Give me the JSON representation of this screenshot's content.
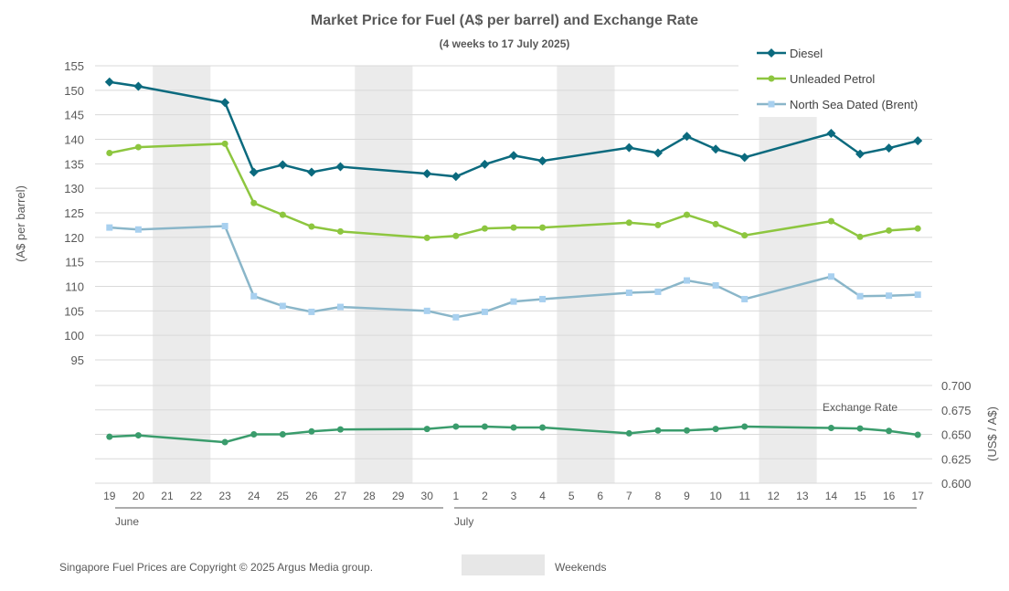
{
  "chart_data": {
    "type": "line",
    "title": "Market Price for Fuel (A$ per barrel) and Exchange Rate",
    "subtitle": "(4 weeks to 17 July 2025)",
    "ylabel": "(A$ per barrel)",
    "y2label": "(US$ / A$)",
    "ylim": [
      95,
      155
    ],
    "yticks": [
      95,
      100,
      105,
      110,
      115,
      120,
      125,
      130,
      135,
      140,
      145,
      150,
      155
    ],
    "y2lim": [
      0.6,
      0.7
    ],
    "y2ticks": [
      "0.600",
      "0.625",
      "0.650",
      "0.675",
      "0.700"
    ],
    "exchange_label": "Exchange Rate",
    "days": [
      "19",
      "20",
      "21",
      "22",
      "23",
      "24",
      "25",
      "26",
      "27",
      "28",
      "29",
      "30",
      "1",
      "2",
      "3",
      "4",
      "5",
      "6",
      "7",
      "8",
      "9",
      "10",
      "11",
      "12",
      "13",
      "14",
      "15",
      "16",
      "17"
    ],
    "months": [
      {
        "label": "June",
        "start_index": 0,
        "end_index": 11
      },
      {
        "label": "July",
        "start_index": 12,
        "end_index": 28
      }
    ],
    "weekend_pairs": [
      [
        2,
        3
      ],
      [
        9,
        10
      ],
      [
        16,
        17
      ],
      [
        23,
        24
      ]
    ],
    "series": [
      {
        "name": "Diesel",
        "color": "#0b6a7e",
        "marker": "diamond",
        "axis": "left",
        "points": [
          [
            0,
            151.7
          ],
          [
            1,
            150.8
          ],
          [
            4,
            147.5
          ],
          [
            5,
            133.3
          ],
          [
            6,
            134.8
          ],
          [
            7,
            133.3
          ],
          [
            8,
            134.4
          ],
          [
            11,
            133.0
          ],
          [
            12,
            132.4
          ],
          [
            13,
            134.9
          ],
          [
            14,
            136.7
          ],
          [
            15,
            135.6
          ],
          [
            18,
            138.3
          ],
          [
            19,
            137.2
          ],
          [
            20,
            140.6
          ],
          [
            21,
            138.0
          ],
          [
            22,
            136.3
          ],
          [
            25,
            141.2
          ],
          [
            26,
            137.0
          ],
          [
            27,
            138.2
          ],
          [
            28,
            139.7
          ]
        ]
      },
      {
        "name": "Unleaded Petrol",
        "color": "#8dc63f",
        "marker": "circle",
        "axis": "left",
        "points": [
          [
            0,
            137.2
          ],
          [
            1,
            138.4
          ],
          [
            4,
            139.1
          ],
          [
            5,
            127.0
          ],
          [
            6,
            124.6
          ],
          [
            7,
            122.2
          ],
          [
            8,
            121.2
          ],
          [
            11,
            119.9
          ],
          [
            12,
            120.3
          ],
          [
            13,
            121.8
          ],
          [
            14,
            122.0
          ],
          [
            15,
            122.0
          ],
          [
            18,
            123.0
          ],
          [
            19,
            122.5
          ],
          [
            20,
            124.6
          ],
          [
            21,
            122.7
          ],
          [
            22,
            120.4
          ],
          [
            25,
            123.3
          ],
          [
            26,
            120.1
          ],
          [
            27,
            121.4
          ],
          [
            28,
            121.8
          ]
        ]
      },
      {
        "name": "North Sea Dated (Brent)",
        "color": "#8ab6c9",
        "marker": "square",
        "axis": "left",
        "points": [
          [
            0,
            122.0
          ],
          [
            1,
            121.6
          ],
          [
            4,
            122.3
          ],
          [
            5,
            108.0
          ],
          [
            6,
            106.0
          ],
          [
            7,
            104.8
          ],
          [
            8,
            105.8
          ],
          [
            11,
            105.0
          ],
          [
            12,
            103.7
          ],
          [
            13,
            104.8
          ],
          [
            14,
            106.9
          ],
          [
            15,
            107.4
          ],
          [
            18,
            108.7
          ],
          [
            19,
            108.9
          ],
          [
            20,
            111.2
          ],
          [
            21,
            110.2
          ],
          [
            22,
            107.4
          ],
          [
            25,
            112.0
          ],
          [
            26,
            108.0
          ],
          [
            27,
            108.1
          ],
          [
            28,
            108.3
          ]
        ]
      },
      {
        "name": "Exchange Rate",
        "color": "#3a9c6c",
        "marker": "circle",
        "axis": "right",
        "points": [
          [
            0,
            0.6475
          ],
          [
            1,
            0.649
          ],
          [
            4,
            0.642
          ],
          [
            5,
            0.65
          ],
          [
            6,
            0.65
          ],
          [
            7,
            0.653
          ],
          [
            8,
            0.655
          ],
          [
            11,
            0.6555
          ],
          [
            12,
            0.658
          ],
          [
            13,
            0.658
          ],
          [
            14,
            0.657
          ],
          [
            15,
            0.657
          ],
          [
            18,
            0.651
          ],
          [
            19,
            0.654
          ],
          [
            20,
            0.654
          ],
          [
            21,
            0.6555
          ],
          [
            22,
            0.658
          ],
          [
            25,
            0.6565
          ],
          [
            26,
            0.656
          ],
          [
            27,
            0.6535
          ],
          [
            28,
            0.6495
          ]
        ]
      }
    ],
    "legend_placement": "top-right",
    "copyright": "Singapore Fuel Prices are Copyright © 2025 Argus Media group.",
    "weekends_label": "Weekends",
    "grid": true
  }
}
